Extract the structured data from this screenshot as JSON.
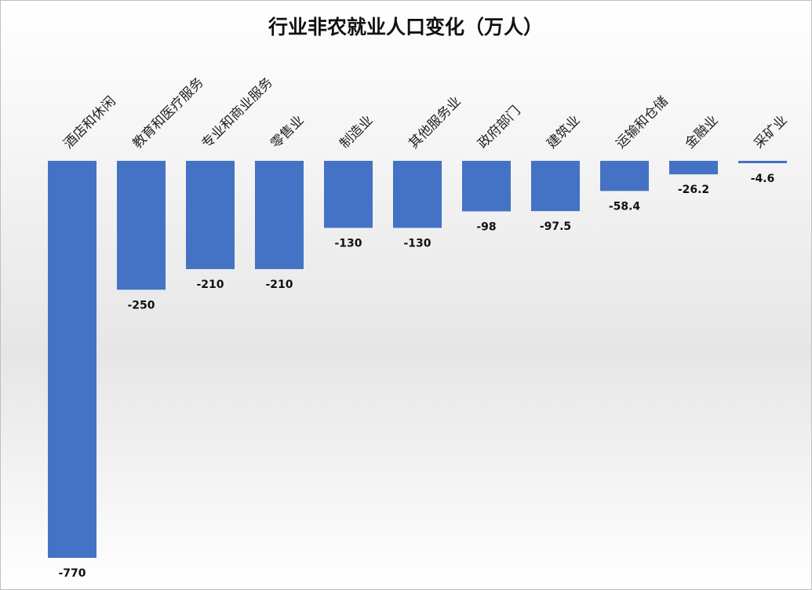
{
  "chart_data": {
    "type": "bar",
    "title": "行业非农就业人口变化（万人）",
    "categories": [
      "酒店和休闲",
      "教育和医疗服务",
      "专业和商业服务",
      "零售业",
      "制造业",
      "其他服务业",
      "政府部门",
      "建筑业",
      "运输和仓储",
      "金融业",
      "采矿业"
    ],
    "values": [
      -770,
      -250,
      -210,
      -210,
      -130,
      -130,
      -98,
      -97.5,
      -58.4,
      -26.2,
      -4.6
    ],
    "color": "#4472c4",
    "ylim": [
      -770,
      0
    ]
  }
}
